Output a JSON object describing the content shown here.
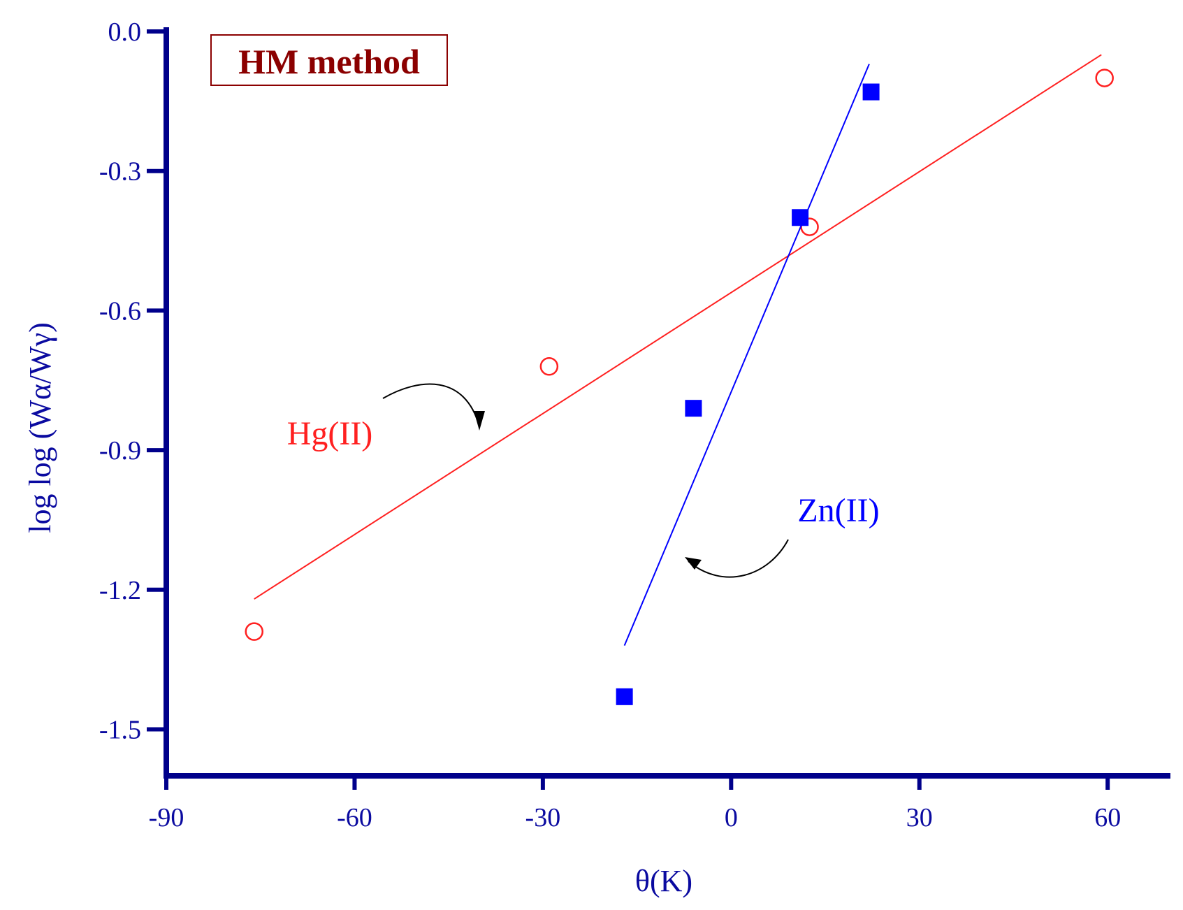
{
  "chart_data": {
    "type": "scatter",
    "annotation": "HM method",
    "xlabel": "θ(K)",
    "ylabel": "log log (Wα/Wγ)",
    "xlim": [
      -90,
      70
    ],
    "ylim": [
      -1.6,
      0.0
    ],
    "xticks": [
      "-90",
      "-60",
      "-30",
      "0",
      "30",
      "60"
    ],
    "xtick_values": [
      -90,
      -60,
      -30,
      0,
      30,
      60
    ],
    "yticks": [
      "0.0",
      "-0.3",
      "-0.6",
      "-0.9",
      "-1.2",
      "-1.5"
    ],
    "ytick_values": [
      0.0,
      -0.3,
      -0.6,
      -0.9,
      -1.2,
      -1.5
    ],
    "grid": false,
    "axis_color": "#00008b",
    "series": [
      {
        "name": "Hg(II)",
        "marker": "open-circle",
        "color": "#ff2020",
        "points": [
          [
            -76,
            -1.29
          ],
          [
            -29,
            -0.72
          ],
          [
            12.5,
            -0.42
          ],
          [
            59.5,
            -0.1
          ]
        ],
        "fit_line": [
          [
            -76,
            -1.22
          ],
          [
            59,
            -0.05
          ]
        ]
      },
      {
        "name": "Zn(II)",
        "marker": "filled-square",
        "color": "#0000ff",
        "points": [
          [
            -17,
            -1.43
          ],
          [
            -6,
            -0.81
          ],
          [
            11,
            -0.4
          ],
          [
            22.3,
            -0.13
          ]
        ],
        "fit_line": [
          [
            -17,
            -1.32
          ],
          [
            22,
            -0.07
          ]
        ]
      }
    ]
  }
}
